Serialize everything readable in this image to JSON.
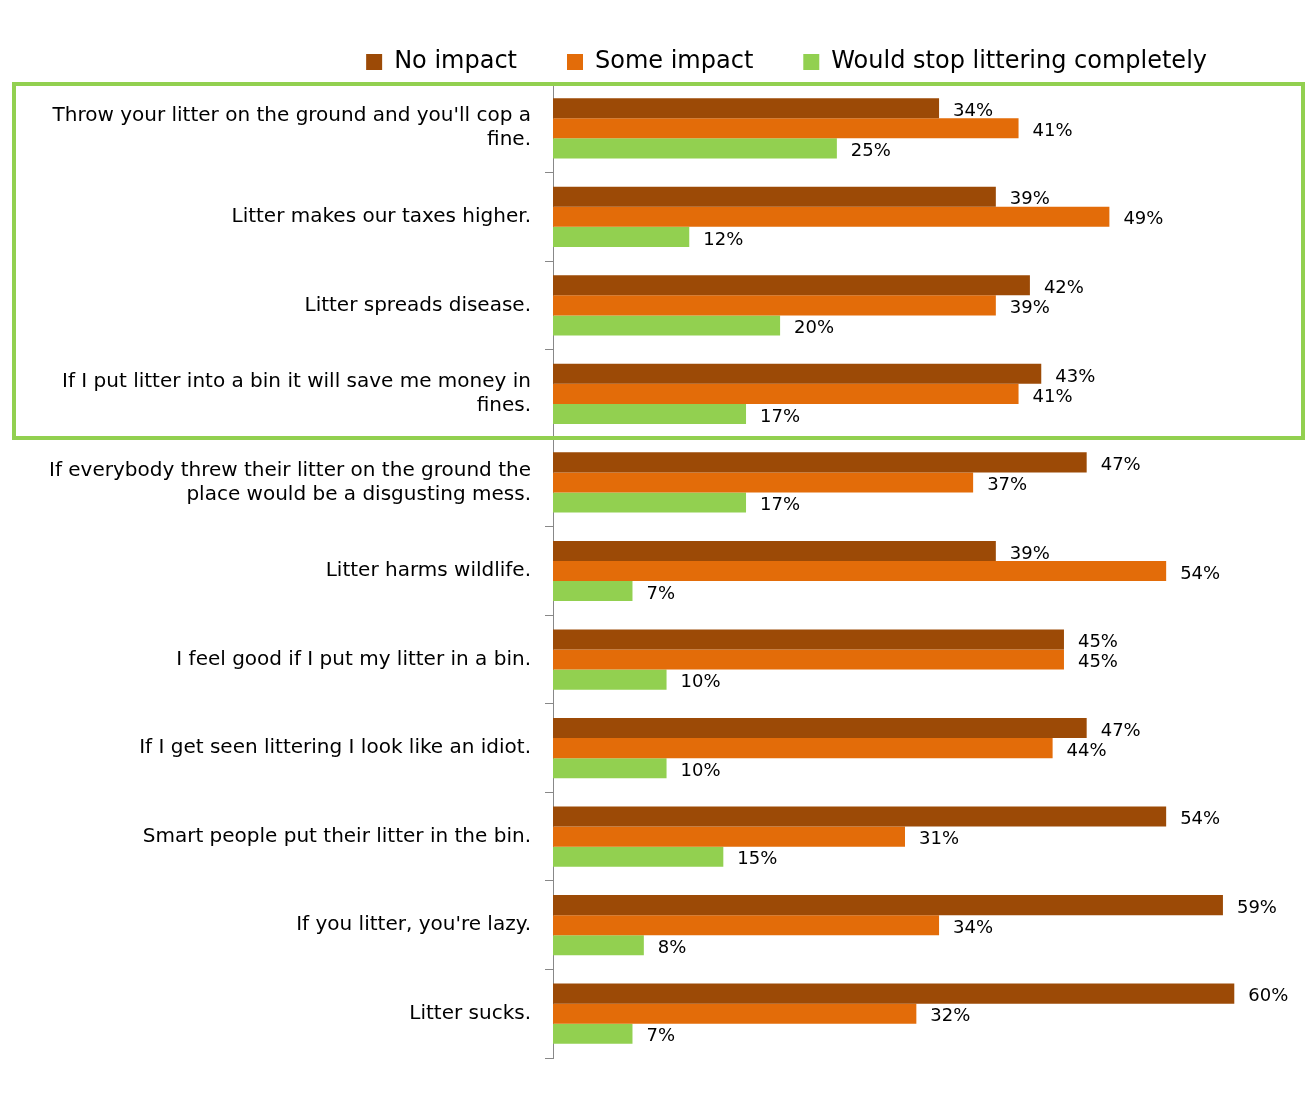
{
  "chart_data": {
    "type": "bar",
    "orientation": "horizontal",
    "categories": [
      "Throw your litter on the ground and you'll cop a fine.",
      "Litter makes our taxes higher.",
      "Litter spreads disease.",
      "If I put litter into a bin it will save me money in fines.",
      "If everybody threw their litter on the ground the place would be a disgusting mess.",
      "Litter harms wildlife.",
      "I feel good if I put my litter in a bin.",
      "If I get seen littering I look like an idiot.",
      "Smart people put their litter in the bin.",
      "If you litter, you're lazy.",
      "Litter sucks."
    ],
    "series": [
      {
        "name": "No impact",
        "color": "#9c4a06",
        "values": [
          34,
          39,
          42,
          43,
          47,
          39,
          45,
          47,
          54,
          59,
          60
        ],
        "value_labels": [
          "34%",
          "39%",
          "42%",
          "43%",
          "47%",
          "39%",
          "45%",
          "47%",
          "54%",
          "59%",
          "60%"
        ]
      },
      {
        "name": "Some impact",
        "color": "#e36c09",
        "values": [
          41,
          49,
          39,
          41,
          37,
          54,
          45,
          44,
          31,
          34,
          32
        ],
        "value_labels": [
          "41%",
          "49%",
          "39%",
          "41%",
          "37%",
          "54%",
          "45%",
          "44%",
          "31%",
          "34%",
          "32%"
        ]
      },
      {
        "name": "Would stop littering completely",
        "color": "#92d050",
        "values": [
          25,
          12,
          20,
          17,
          17,
          7,
          10,
          10,
          15,
          8,
          7
        ],
        "value_labels": [
          "25%",
          "12%",
          "20%",
          "17%",
          "17%",
          "7%",
          "10%",
          "10%",
          "15%",
          "8%",
          "7%"
        ]
      }
    ],
    "legend": "top"
  }
}
